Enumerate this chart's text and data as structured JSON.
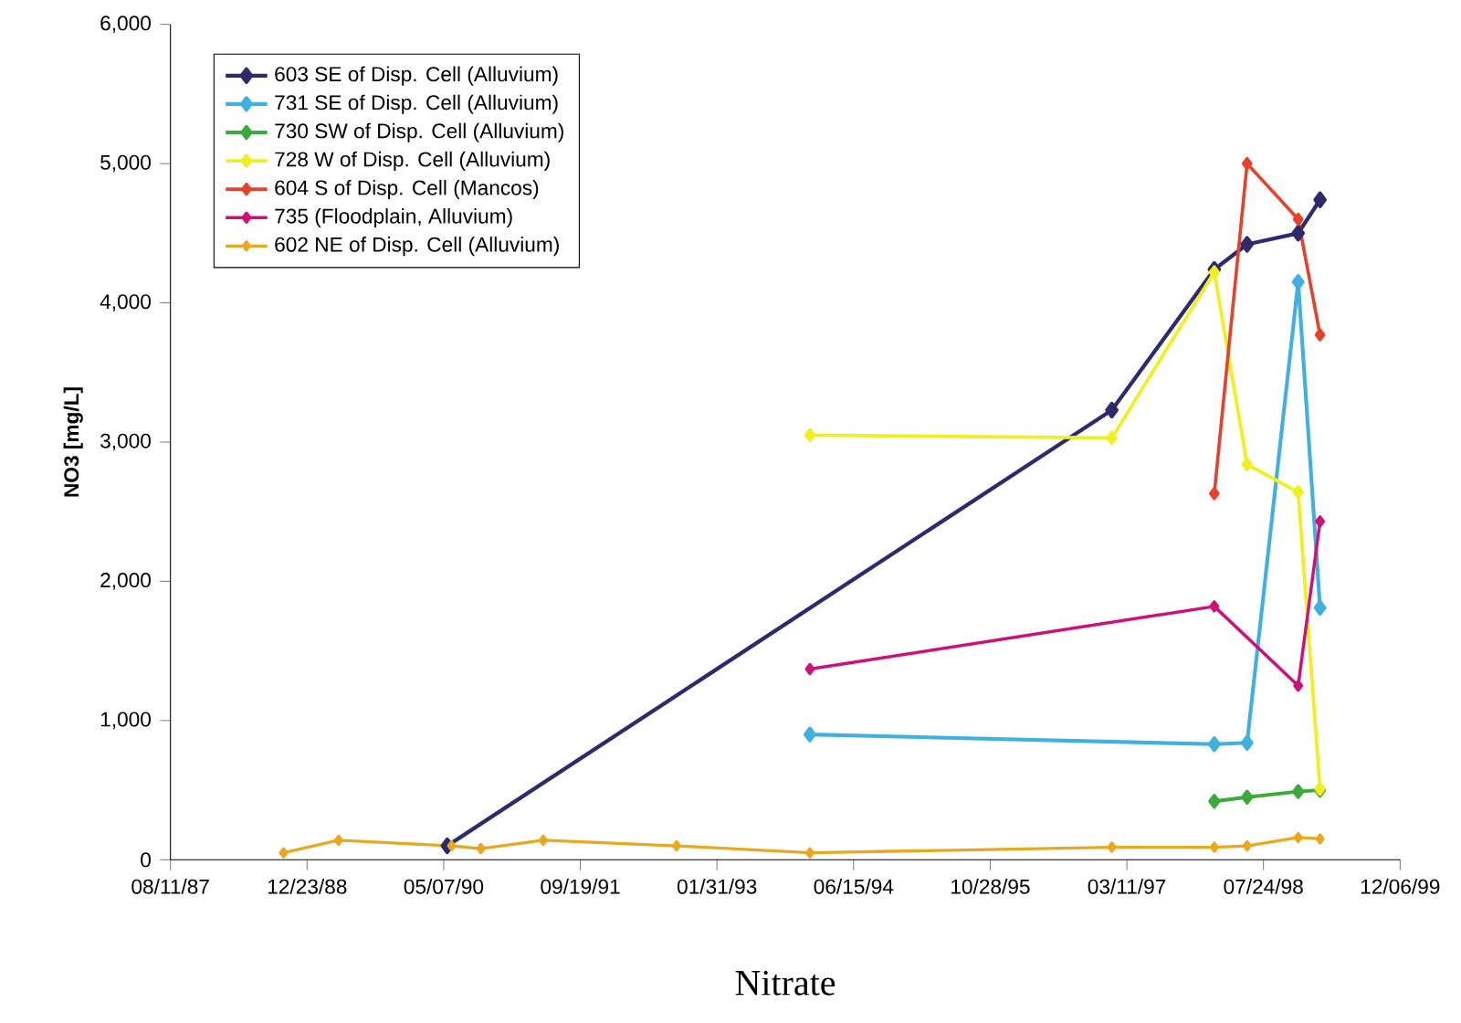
{
  "chart_data": {
    "type": "line",
    "title": "Nitrate",
    "ylabel": "NO3 [mg/L]",
    "xlim": [
      "1987-08-11",
      "1999-12-06"
    ],
    "xticks": [
      {
        "value": "1987-08-11",
        "label": "08/11/87"
      },
      {
        "value": "1988-12-23",
        "label": "12/23/88"
      },
      {
        "value": "1990-05-07",
        "label": "05/07/90"
      },
      {
        "value": "1991-09-19",
        "label": "09/19/91"
      },
      {
        "value": "1993-01-31",
        "label": "01/31/93"
      },
      {
        "value": "1994-06-15",
        "label": "06/15/94"
      },
      {
        "value": "1995-10-28",
        "label": "10/28/95"
      },
      {
        "value": "1997-03-11",
        "label": "03/11/97"
      },
      {
        "value": "1998-07-24",
        "label": "07/24/98"
      },
      {
        "value": "1999-12-06",
        "label": "12/06/99"
      }
    ],
    "ylim": [
      0,
      6000
    ],
    "yticks": [
      0,
      {
        "value": 1000,
        "label": "1,000"
      },
      {
        "value": 2000,
        "label": "2,000"
      },
      {
        "value": 3000,
        "label": "3,000"
      },
      {
        "value": 4000,
        "label": "4,000"
      },
      {
        "value": 5000,
        "label": "5,000"
      },
      {
        "value": 6000,
        "label": "6,000"
      }
    ],
    "grid": false,
    "legend": "top left",
    "marker": "diamond",
    "line_style": "solid",
    "series": [
      {
        "name": "603 SE of Disp. Cell (Alluvium)",
        "color": "#2e2a6e",
        "x": [
          "1990-05-20",
          "1997-01-15",
          "1998-01-25",
          "1998-05-25",
          "1998-11-28",
          "1999-02-16"
        ],
        "values": [
          100,
          3230,
          4240,
          4420,
          4500,
          4740
        ]
      },
      {
        "name": "731 SE of Disp. Cell (Alluvium)",
        "color": "#3fb0e0",
        "x": [
          "1994-01-06",
          "1998-01-25",
          "1998-05-25",
          "1998-11-28",
          "1999-02-16"
        ],
        "values": [
          900,
          830,
          840,
          4150,
          1810
        ]
      },
      {
        "name": "730 SW of Disp. Cell (Alluvium)",
        "color": "#3aaa3a",
        "x": [
          "1998-01-25",
          "1998-05-25",
          "1998-11-28",
          "1999-02-16"
        ],
        "values": [
          420,
          450,
          490,
          500
        ]
      },
      {
        "name": "728 W of Disp. Cell (Alluvium)",
        "color": "#f0f020",
        "x": [
          "1994-01-06",
          "1997-01-15",
          "1998-01-25",
          "1998-05-25",
          "1998-11-28",
          "1999-02-16"
        ],
        "values": [
          3050,
          3030,
          4220,
          2840,
          2640,
          510
        ]
      },
      {
        "name": "604 S of Disp. Cell (Mancos)",
        "color": "#e8402a",
        "x": [
          "1998-01-25",
          "1998-05-25",
          "1998-11-28",
          "1999-02-16"
        ],
        "values": [
          2630,
          5000,
          4600,
          3770
        ]
      },
      {
        "name": "735 (Floodplain, Alluvium)",
        "color": "#d0107a",
        "x": [
          "1994-01-06",
          "1998-01-25",
          "1998-11-28",
          "1999-02-16"
        ],
        "values": [
          1370,
          1820,
          1250,
          2430
        ]
      },
      {
        "name": "602 NE of Disp. Cell (Alluvium)",
        "color": "#e8a820",
        "x": [
          "1988-09-28",
          "1989-04-17",
          "1990-06-05",
          "1990-09-20",
          "1991-05-06",
          "1992-09-05",
          "1994-01-06",
          "1997-01-15",
          "1998-01-25",
          "1998-05-25",
          "1998-11-28",
          "1999-02-16"
        ],
        "values": [
          50,
          140,
          100,
          80,
          140,
          100,
          50,
          90,
          90,
          100,
          160,
          150
        ]
      }
    ]
  }
}
